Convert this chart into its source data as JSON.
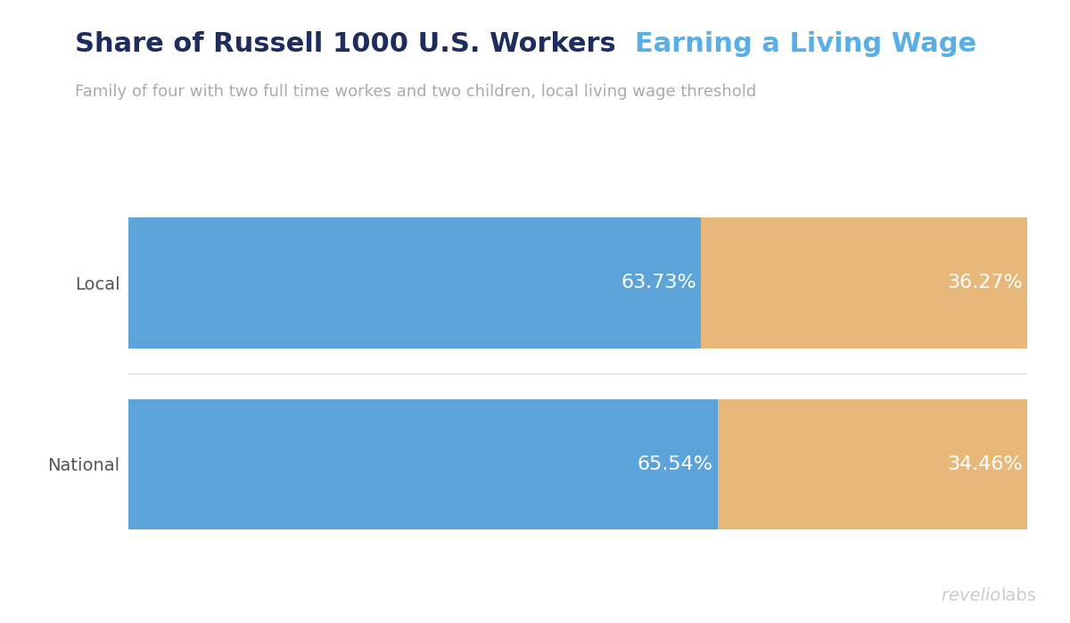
{
  "title_part1": "Share of Russell 1000 U.S. Workers",
  "title_part2": "Earning a Living Wage",
  "subtitle": "Family of four with two full time workes and two children, local living wage threshold",
  "categories": [
    "Local",
    "National"
  ],
  "blue_values": [
    63.73,
    65.54
  ],
  "orange_values": [
    36.27,
    34.46
  ],
  "blue_labels": [
    "63.73%",
    "65.54%"
  ],
  "orange_labels": [
    "36.27%",
    "34.46%"
  ],
  "blue_color": "#5ba3d9",
  "orange_color": "#e8b87a",
  "title_color1": "#1e2d5e",
  "title_color2": "#5aaee8",
  "subtitle_color": "#aaaaaa",
  "background_color": "#ffffff",
  "label_color": "#ffffff",
  "watermark_color": "#cccccc",
  "bar_height": 0.72,
  "title_fontsize": 22,
  "subtitle_fontsize": 13,
  "label_fontsize": 16,
  "category_fontsize": 14,
  "watermark_fontsize": 14
}
